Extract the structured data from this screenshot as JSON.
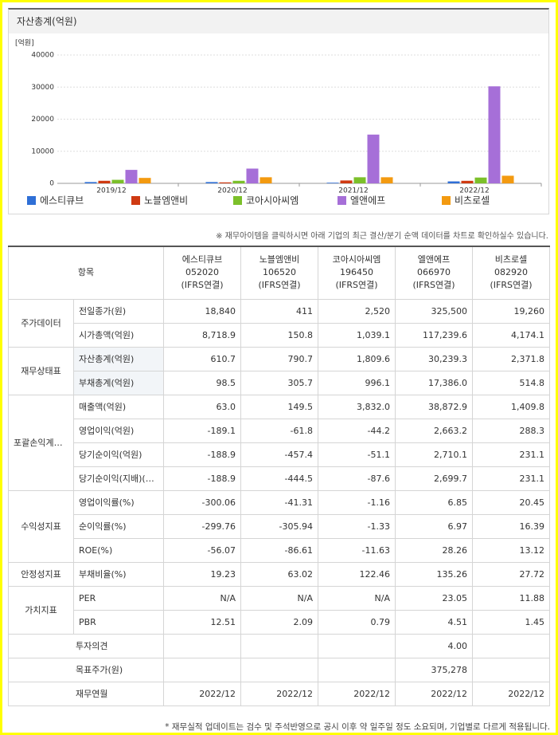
{
  "chart_data": {
    "type": "bar",
    "title": "자산총계(억원)",
    "y_label": "[억원]",
    "categories": [
      "2019/12",
      "2020/12",
      "2021/12",
      "2022/12"
    ],
    "series": [
      {
        "name": "에스티큐브",
        "color": "#2f6fd6",
        "values": [
          400,
          400,
          200,
          610.7
        ]
      },
      {
        "name": "노블엠앤비",
        "color": "#cf3a12",
        "values": [
          800,
          300,
          900,
          790.7
        ]
      },
      {
        "name": "코아시아씨엠",
        "color": "#7cc02a",
        "values": [
          1100,
          800,
          1900,
          1809.6
        ]
      },
      {
        "name": "엘앤에프",
        "color": "#a66fd8",
        "values": [
          4200,
          4600,
          15200,
          30239.3
        ]
      },
      {
        "name": "비츠로셀",
        "color": "#f39a10",
        "values": [
          1700,
          1900,
          1900,
          2371.8
        ]
      }
    ],
    "ylim": [
      0,
      40000
    ],
    "yticks": [
      0,
      10000,
      20000,
      30000,
      40000
    ],
    "grid": true,
    "legend": "bottom"
  },
  "note": "※ 재무아이템을 클릭하시면 아래 기업의 최근 결산/분기 순액 데이터를 차트로 확인하실수 있습니다.",
  "table": {
    "corner": "항목",
    "columns": [
      {
        "name": "에스티큐브",
        "code": "052020",
        "basis": "(IFRS연결)"
      },
      {
        "name": "노블엠앤비",
        "code": "106520",
        "basis": "(IFRS연결)"
      },
      {
        "name": "코아시아씨엠",
        "code": "196450",
        "basis": "(IFRS연결)"
      },
      {
        "name": "엘앤에프",
        "code": "066970",
        "basis": "(IFRS연결)"
      },
      {
        "name": "비츠로셀",
        "code": "082920",
        "basis": "(IFRS연결)"
      }
    ],
    "groups": [
      {
        "name": "주가데이터",
        "rows": [
          {
            "item": "전일종가(원)",
            "values": [
              "18,840",
              "411",
              "2,520",
              "325,500",
              "19,260"
            ]
          },
          {
            "item": "시가총액(억원)",
            "values": [
              "8,718.9",
              "150.8",
              "1,039.1",
              "117,239.6",
              "4,174.1"
            ]
          }
        ]
      },
      {
        "name": "재무상태표",
        "rows": [
          {
            "item": "자산총계(억원)",
            "values": [
              "610.7",
              "790.7",
              "1,809.6",
              "30,239.3",
              "2,371.8"
            ]
          },
          {
            "item": "부채총계(억원)",
            "values": [
              "98.5",
              "305.7",
              "996.1",
              "17,386.0",
              "514.8"
            ]
          }
        ]
      },
      {
        "name": "포괄손익계산서",
        "rows": [
          {
            "item": "매출액(억원)",
            "values": [
              "63.0",
              "149.5",
              "3,832.0",
              "38,872.9",
              "1,409.8"
            ]
          },
          {
            "item": "영업이익(억원)",
            "values": [
              "-189.1",
              "-61.8",
              "-44.2",
              "2,663.2",
              "288.3"
            ]
          },
          {
            "item": "당기순이익(억원)",
            "values": [
              "-188.9",
              "-457.4",
              "-51.1",
              "2,710.1",
              "231.1"
            ]
          },
          {
            "item": "당기순이익(지배)(억원)",
            "values": [
              "-188.9",
              "-444.5",
              "-87.6",
              "2,699.7",
              "231.1"
            ]
          }
        ]
      },
      {
        "name": "수익성지표",
        "rows": [
          {
            "item": "영업이익률(%)",
            "values": [
              "-300.06",
              "-41.31",
              "-1.16",
              "6.85",
              "20.45"
            ]
          },
          {
            "item": "순이익률(%)",
            "values": [
              "-299.76",
              "-305.94",
              "-1.33",
              "6.97",
              "16.39"
            ]
          },
          {
            "item": "ROE(%)",
            "values": [
              "-56.07",
              "-86.61",
              "-11.63",
              "28.26",
              "13.12"
            ]
          }
        ]
      },
      {
        "name": "안정성지표",
        "rows": [
          {
            "item": "부채비율(%)",
            "values": [
              "19.23",
              "63.02",
              "122.46",
              "135.26",
              "27.72"
            ]
          }
        ]
      },
      {
        "name": "가치지표",
        "rows": [
          {
            "item": "PER",
            "values": [
              "N/A",
              "N/A",
              "N/A",
              "23.05",
              "11.88"
            ]
          },
          {
            "item": "PBR",
            "values": [
              "12.51",
              "2.09",
              "0.79",
              "4.51",
              "1.45"
            ]
          }
        ]
      },
      {
        "name": null,
        "rows": [
          {
            "item": "투자의견",
            "values": [
              null,
              null,
              null,
              "4.00",
              null
            ]
          },
          {
            "item": "목표주가(원)",
            "values": [
              null,
              null,
              null,
              "375,278",
              null
            ]
          },
          {
            "item": "재무연월",
            "values": [
              "2022/12",
              "2022/12",
              "2022/12",
              "2022/12",
              "2022/12"
            ]
          }
        ]
      }
    ]
  },
  "footnote": "* 재무실적 업데이트는 검수 및 주석반영으로 공시 이후 약 일주일 정도 소요되며, 기업별로 다르게 적용됩니다."
}
